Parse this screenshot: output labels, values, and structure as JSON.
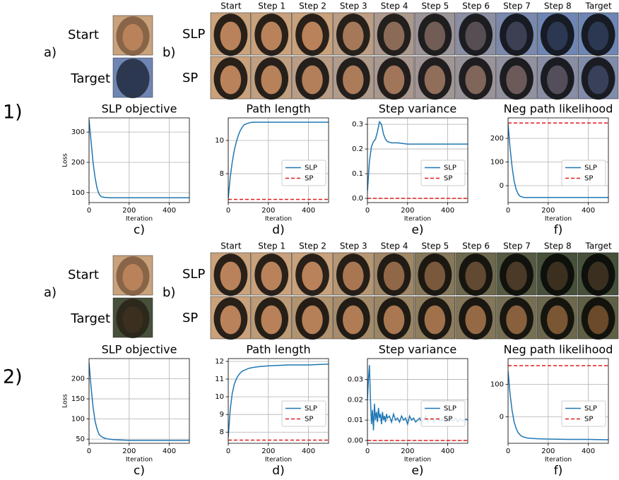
{
  "panels": [
    {
      "label": "1)",
      "a_label": "a)",
      "b_label": "b)",
      "start_label": "Start",
      "target_label": "Target",
      "columns": [
        "Start",
        "Step 1",
        "Step 2",
        "Step 3",
        "Step 4",
        "Step 5",
        "Step 6",
        "Step 7",
        "Step 8",
        "Target"
      ],
      "rows": [
        "SLP",
        "SP"
      ]
    },
    {
      "label": "2)",
      "a_label": "a)",
      "b_label": "b)",
      "start_label": "Start",
      "target_label": "Target",
      "columns": [
        "Start",
        "Step 1",
        "Step 2",
        "Step 3",
        "Step 4",
        "Step 5",
        "Step 6",
        "Step 7",
        "Step 8",
        "Target"
      ],
      "rows": [
        "SLP",
        "SP"
      ]
    }
  ],
  "chart_data": [
    {
      "type": "line",
      "title": "SLP objective",
      "label": "c)",
      "xlabel": "Iteration",
      "ylabel": "Loss",
      "grid": true,
      "xlim": [
        0,
        500
      ],
      "ylim": [
        67,
        347
      ],
      "xticks": [
        0,
        200,
        400
      ],
      "yticks": [
        100,
        200,
        300
      ],
      "series": [
        {
          "color": "#1f77b4",
          "x": [
            0,
            10,
            20,
            30,
            40,
            50,
            60,
            70,
            80,
            90,
            100,
            120,
            150,
            200,
            300,
            400,
            500
          ],
          "values": [
            340,
            270,
            200,
            150,
            115,
            95,
            87,
            85,
            84,
            84,
            83,
            83,
            83,
            83,
            83,
            83,
            83
          ]
        }
      ]
    },
    {
      "type": "line",
      "title": "Path length",
      "label": "d)",
      "xlabel": "Iteration",
      "grid": true,
      "legend": "center right",
      "xlim": [
        0,
        500
      ],
      "ylim": [
        6.26,
        11.36
      ],
      "xticks": [
        0,
        200,
        400
      ],
      "yticks": [
        8,
        10
      ],
      "series": [
        {
          "name": "SLP",
          "color": "#1f77b4",
          "x": [
            0,
            10,
            20,
            30,
            40,
            50,
            60,
            70,
            80,
            90,
            100,
            120,
            150,
            200,
            300,
            400,
            500
          ],
          "values": [
            6.5,
            7.8,
            8.7,
            9.4,
            9.9,
            10.3,
            10.6,
            10.8,
            10.95,
            11.0,
            11.05,
            11.1,
            11.1,
            11.1,
            11.1,
            11.1,
            11.1
          ]
        },
        {
          "name": "SP",
          "color": "#e41a1c",
          "dashed": true,
          "x": [
            0,
            500
          ],
          "values": [
            6.45,
            6.45
          ]
        }
      ]
    },
    {
      "type": "line",
      "title": "Step variance",
      "label": "e)",
      "xlabel": "Iteration",
      "grid": true,
      "legend": "center right",
      "xlim": [
        0,
        500
      ],
      "ylim": [
        -0.017,
        0.326
      ],
      "xticks": [
        0,
        200,
        400
      ],
      "yticks": [
        {
          "value": 0,
          "label": "0.0"
        },
        0.1,
        0.2,
        0.3
      ],
      "series": [
        {
          "name": "SLP",
          "color": "#1f77b4",
          "x": [
            0,
            10,
            20,
            30,
            40,
            50,
            60,
            70,
            80,
            90,
            100,
            120,
            150,
            200,
            300,
            400,
            500
          ],
          "values": [
            0.03,
            0.15,
            0.21,
            0.23,
            0.24,
            0.27,
            0.31,
            0.3,
            0.26,
            0.24,
            0.23,
            0.225,
            0.225,
            0.22,
            0.22,
            0.22,
            0.22
          ]
        },
        {
          "name": "SP",
          "color": "#e41a1c",
          "dashed": true,
          "x": [
            0,
            500
          ],
          "values": [
            0,
            0
          ]
        }
      ]
    },
    {
      "type": "line",
      "title": "Neg path likelihood",
      "label": "f)",
      "xlabel": "Iteration",
      "grid": true,
      "legend": "center right",
      "xlim": [
        0,
        500
      ],
      "ylim": [
        -71.6,
        286.6
      ],
      "xticks": [
        0,
        200,
        400
      ],
      "yticks": [
        0,
        100,
        200
      ],
      "series": [
        {
          "name": "SLP",
          "color": "#1f77b4",
          "x": [
            0,
            10,
            20,
            30,
            40,
            50,
            60,
            70,
            80,
            90,
            100,
            120,
            150,
            200,
            300,
            400,
            500
          ],
          "values": [
            260,
            160,
            80,
            20,
            -15,
            -35,
            -45,
            -48,
            -50,
            -50,
            -50,
            -50,
            -50,
            -50,
            -50,
            -50,
            -50
          ]
        },
        {
          "name": "SP",
          "color": "#e41a1c",
          "dashed": true,
          "x": [
            0,
            500
          ],
          "values": [
            265,
            265
          ]
        }
      ]
    },
    {
      "type": "line",
      "title": "SLP objective",
      "label": "c)",
      "xlabel": "Iteration",
      "ylabel": "Loss",
      "grid": true,
      "xlim": [
        0,
        500
      ],
      "ylim": [
        39.7,
        250
      ],
      "xticks": [
        0,
        200,
        400
      ],
      "yticks": [
        50,
        100,
        150,
        200
      ],
      "series": [
        {
          "color": "#1f77b4",
          "x": [
            0,
            10,
            20,
            30,
            40,
            50,
            60,
            70,
            80,
            90,
            100,
            120,
            150,
            200,
            300,
            400,
            500
          ],
          "values": [
            240,
            180,
            130,
            95,
            75,
            62,
            57,
            54,
            52,
            51,
            50,
            49,
            48,
            47,
            47,
            47,
            47
          ]
        }
      ]
    },
    {
      "type": "line",
      "title": "Path length",
      "label": "d)",
      "xlabel": "Iteration",
      "grid": true,
      "legend": "center right",
      "xlim": [
        0,
        500
      ],
      "ylim": [
        7.37,
        12.16
      ],
      "xticks": [
        0,
        200,
        400
      ],
      "yticks": [
        8,
        9,
        10,
        11,
        12
      ],
      "series": [
        {
          "name": "SLP",
          "color": "#1f77b4",
          "x": [
            0,
            10,
            20,
            30,
            40,
            50,
            60,
            70,
            80,
            90,
            100,
            120,
            150,
            200,
            300,
            400,
            500
          ],
          "values": [
            7.7,
            9.3,
            10.2,
            10.7,
            11.0,
            11.2,
            11.35,
            11.45,
            11.5,
            11.55,
            11.6,
            11.65,
            11.7,
            11.75,
            11.8,
            11.8,
            11.85
          ]
        },
        {
          "name": "SP",
          "color": "#e41a1c",
          "dashed": true,
          "x": [
            0,
            500
          ],
          "values": [
            7.55,
            7.55
          ]
        }
      ]
    },
    {
      "type": "line",
      "title": "Step variance",
      "label": "e)",
      "xlabel": "Iteration",
      "grid": true,
      "legend": "center right",
      "xlim": [
        0,
        500
      ],
      "ylim": [
        -0.0014,
        0.0402
      ],
      "xticks": [
        0,
        200,
        400
      ],
      "yticks": [
        {
          "value": 0,
          "label": "0.00"
        },
        {
          "value": 0.01,
          "label": "0.01"
        },
        {
          "value": 0.02,
          "label": "0.02"
        },
        {
          "value": 0.03,
          "label": "0.03"
        }
      ],
      "series": [
        {
          "name": "SLP",
          "color": "#1f77b4",
          "x": [
            0,
            5,
            10,
            15,
            20,
            25,
            30,
            35,
            40,
            45,
            50,
            55,
            60,
            65,
            70,
            75,
            80,
            85,
            90,
            95,
            100,
            110,
            120,
            130,
            140,
            150,
            160,
            170,
            180,
            190,
            200,
            210,
            220,
            230,
            240,
            250,
            260,
            270,
            280,
            290,
            300,
            310,
            320,
            330,
            340,
            350,
            360,
            370,
            380,
            390,
            400,
            410,
            420,
            430,
            440,
            450,
            460,
            470,
            480,
            490,
            500
          ],
          "values": [
            0.02,
            0.03,
            0.037,
            0.02,
            0.008,
            0.015,
            0.005,
            0.018,
            0.01,
            0.014,
            0.009,
            0.016,
            0.011,
            0.013,
            0.008,
            0.014,
            0.01,
            0.012,
            0.009,
            0.013,
            0.011,
            0.012,
            0.009,
            0.013,
            0.01,
            0.011,
            0.009,
            0.012,
            0.01,
            0.011,
            0.008,
            0.012,
            0.01,
            0.011,
            0.009,
            0.01,
            0.011,
            0.009,
            0.01,
            0.012,
            0.009,
            0.01,
            0.011,
            0.009,
            0.01,
            0.011,
            0.0095,
            0.0105,
            0.01,
            0.011,
            0.009,
            0.0105,
            0.0095,
            0.01,
            0.011,
            0.009,
            0.0105,
            0.01,
            0.0095,
            0.0105,
            0.01
          ]
        },
        {
          "name": "SP",
          "color": "#e41a1c",
          "dashed": true,
          "x": [
            0,
            500
          ],
          "values": [
            0,
            0
          ]
        }
      ]
    },
    {
      "type": "line",
      "title": "Neg path likelihood",
      "label": "f)",
      "xlabel": "Iteration",
      "grid": true,
      "legend": "center right",
      "xlim": [
        0,
        500
      ],
      "ylim": [
        -80.9,
        178.7
      ],
      "xticks": [
        0,
        200,
        400
      ],
      "yticks": [
        0,
        100
      ],
      "series": [
        {
          "name": "SLP",
          "color": "#1f77b4",
          "x": [
            0,
            10,
            20,
            30,
            40,
            50,
            60,
            70,
            80,
            90,
            100,
            120,
            150,
            200,
            300,
            400,
            500
          ],
          "values": [
            140,
            70,
            20,
            -15,
            -35,
            -48,
            -55,
            -60,
            -62,
            -64,
            -65,
            -66,
            -67,
            -68,
            -69,
            -69,
            -70
          ]
        },
        {
          "name": "SP",
          "color": "#e41a1c",
          "dashed": true,
          "x": [
            0,
            500
          ],
          "values": [
            157,
            157
          ]
        }
      ]
    }
  ]
}
